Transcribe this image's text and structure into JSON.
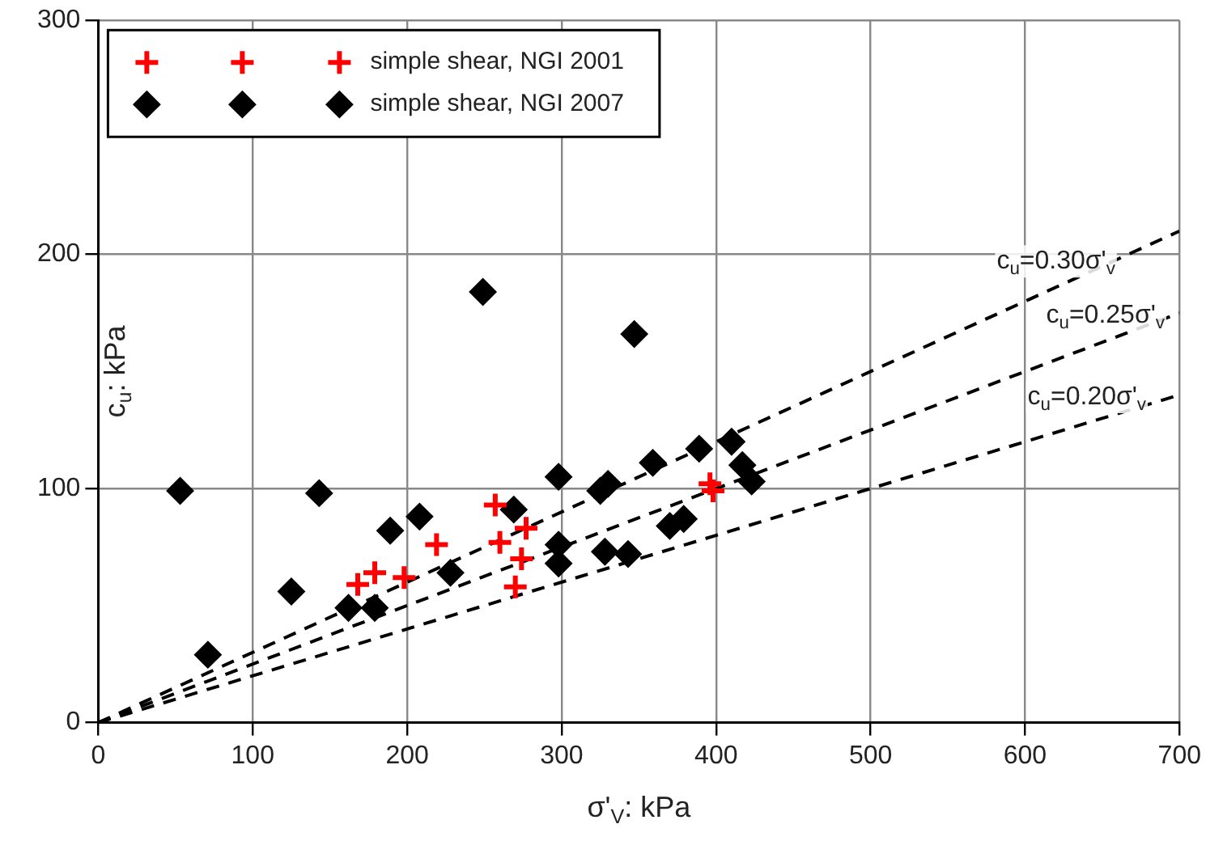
{
  "chart_data": {
    "type": "scatter",
    "xlabel": "σ'$_{V}$: kPa",
    "ylabel": "c$_{u}$: kPa",
    "xlim": [
      0,
      700
    ],
    "xticks": [
      0,
      100,
      200,
      300,
      400,
      500,
      600,
      700
    ],
    "ylim": [
      0,
      300
    ],
    "yticks": [
      0,
      100,
      200,
      300
    ],
    "grid": true,
    "legend": "top left",
    "series": [
      {
        "name": "simple shear, NGI 2001",
        "marker": "cross",
        "color": "#ff0000",
        "x": [
          168,
          179,
          198,
          219,
          257,
          260,
          277,
          274,
          270,
          396,
          398
        ],
        "values": [
          59,
          64,
          62,
          76,
          93,
          77,
          83,
          70,
          58,
          102,
          99
        ]
      },
      {
        "name": "simple shear, NGI 2007",
        "marker": "diamond",
        "color": "#000000",
        "x": [
          53,
          143,
          71,
          125,
          162,
          179,
          189,
          208,
          228,
          249,
          269,
          298,
          298,
          298,
          325,
          330,
          328,
          343,
          347,
          359,
          389,
          410,
          417,
          423,
          370,
          379
        ],
        "values": [
          99,
          98,
          29,
          56,
          49,
          49,
          82,
          88,
          64,
          184,
          91,
          105,
          76,
          68,
          99,
          102,
          73,
          72,
          166,
          111,
          117,
          120,
          110,
          103,
          84,
          87
        ]
      },
      {
        "type": "line",
        "marker": "none",
        "line_style": "dashed",
        "color": "#000000",
        "x": [
          0,
          700
        ],
        "values": [
          0,
          210
        ]
      },
      {
        "type": "line",
        "marker": "none",
        "line_style": "dashed",
        "color": "#000000",
        "x": [
          0,
          700
        ],
        "values": [
          0,
          175
        ]
      },
      {
        "type": "line",
        "marker": "none",
        "line_style": "dashed",
        "color": "#000000",
        "x": [
          0,
          700
        ],
        "values": [
          0,
          140
        ]
      }
    ],
    "annotations": [
      {
        "text": "c$_{u}$=0.30σ'$_{v}$",
        "x": 620,
        "y": 186
      },
      {
        "text": "c$_{u}$=0.25σ'$_{v}$",
        "x": 652,
        "y": 163
      },
      {
        "text": "c$_{u}$=0.20σ'$_{v}$",
        "x": 640,
        "y": 128
      }
    ]
  }
}
